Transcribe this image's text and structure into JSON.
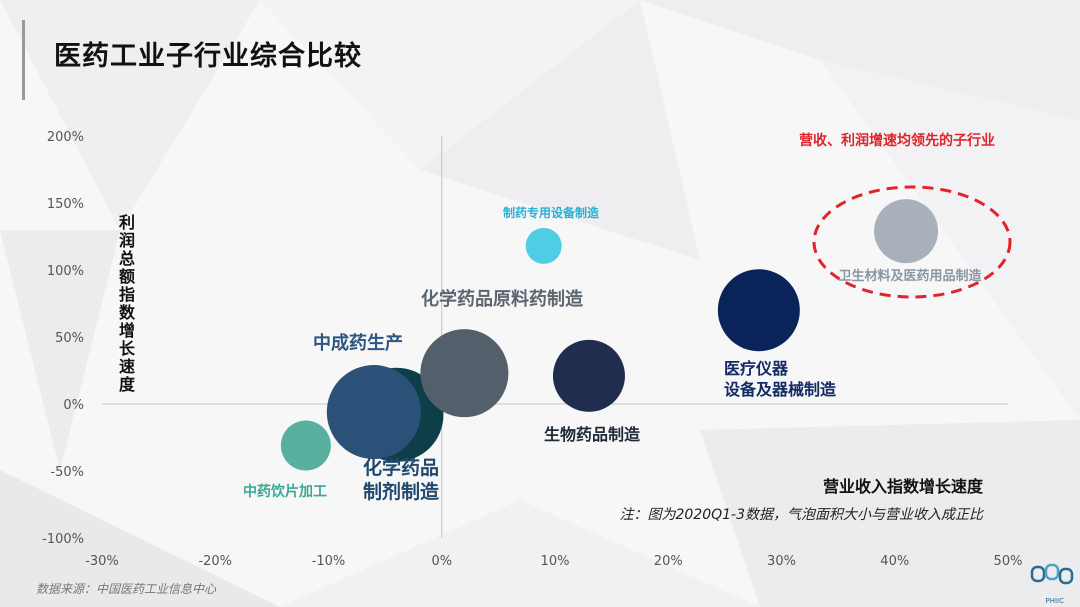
{
  "slide": {
    "title": "医药工业子行业综合比较",
    "source": "数据来源：中国医药工业信息中心",
    "logo_text": "PHIIC"
  },
  "chart_data": {
    "type": "bubble",
    "xlabel": "营业收入指数增长速度",
    "ylabel": "利润总额指数增长速度",
    "xlim": [
      -30,
      50
    ],
    "ylim": [
      -100,
      200
    ],
    "x_ticks": [
      "-30%",
      "-20%",
      "-10%",
      "0%",
      "10%",
      "20%",
      "30%",
      "40%",
      "50%"
    ],
    "y_ticks": [
      "200%",
      "150%",
      "100%",
      "50%",
      "0%",
      "-50%",
      "-100%"
    ],
    "note": "注：图为2020Q1-3数据，气泡面积大小与营业收入成正比",
    "highlight_label": "营收、利润增速均领先的子行业",
    "colors": {
      "highlight": "#e0242a"
    },
    "series": [
      {
        "name": "化学药品制剂制造",
        "x": -4,
        "y": -8,
        "size": 47,
        "color": "#0e3f49",
        "label_color": "#21486e"
      },
      {
        "name": "中成药生产",
        "x": -6,
        "y": -6,
        "size": 47,
        "color": "#2b5179",
        "label_color": "#2d5680"
      },
      {
        "name": "化学药品原料药制造",
        "x": 2,
        "y": 23,
        "size": 44,
        "color": "#535f6b",
        "label_color": "#5c6670"
      },
      {
        "name": "中药饮片加工",
        "x": -12,
        "y": -31,
        "size": 25,
        "color": "#58b09f",
        "label_color": "#3aa797"
      },
      {
        "name": "制药专用设备制造",
        "x": 9,
        "y": 118,
        "size": 18,
        "color": "#4fcde4",
        "label_color": "#27b1d3"
      },
      {
        "name": "生物药品制造",
        "x": 13,
        "y": 21,
        "size": 36,
        "color": "#212d4f",
        "label_color": "#1f2937"
      },
      {
        "name": "医疗仪器设备及器械制造",
        "x": 28,
        "y": 70,
        "size": 41,
        "color": "#0a2459",
        "label_color": "#132b63"
      },
      {
        "name": "卫生材料及医药用品制造",
        "x": 41,
        "y": 129,
        "size": 32,
        "color": "#a8b1bb",
        "label_color": "#8a96a3"
      }
    ]
  }
}
